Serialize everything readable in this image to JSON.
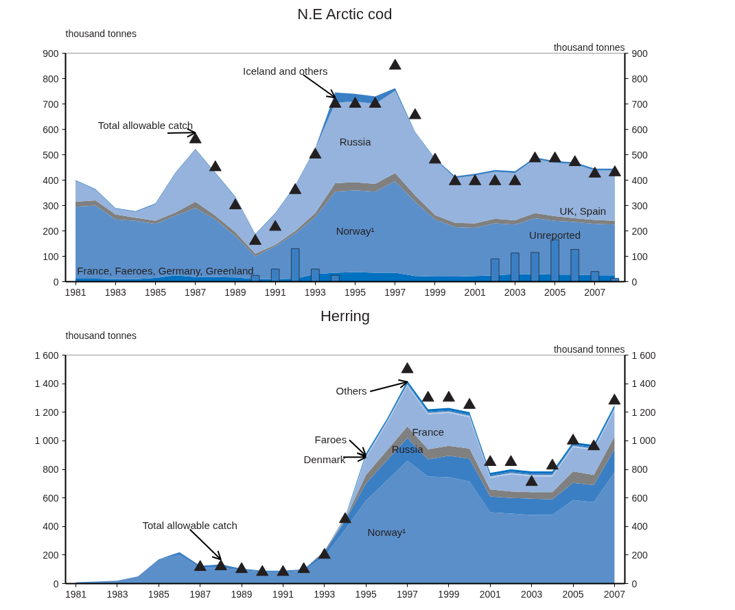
{
  "chart_data": [
    {
      "type": "area",
      "title": "N.E Arctic cod",
      "ylabel": "thousand tonnes",
      "y2label": "thousand tonnes",
      "stacked": true,
      "grid": false,
      "legend": false,
      "x": [
        1981,
        1982,
        1983,
        1984,
        1985,
        1986,
        1987,
        1988,
        1989,
        1990,
        1991,
        1992,
        1993,
        1994,
        1995,
        1996,
        1997,
        1998,
        1999,
        2000,
        2001,
        2002,
        2003,
        2004,
        2005,
        2006,
        2007,
        2008
      ],
      "xlim": [
        1980.5,
        2008.5
      ],
      "xticks": [
        1981,
        1983,
        1985,
        1987,
        1989,
        1991,
        1993,
        1995,
        1997,
        1999,
        2001,
        2003,
        2005,
        2007
      ],
      "ylim": [
        0,
        900
      ],
      "yticks": [
        0,
        100,
        200,
        300,
        400,
        500,
        600,
        700,
        800,
        900
      ],
      "y2lim": [
        0,
        900
      ],
      "y2ticks": [
        0,
        100,
        200,
        300,
        400,
        500,
        600,
        700,
        800,
        900
      ],
      "series": [
        {
          "name": "France, Faeroes, Germany, Greenland",
          "color": "#0070c0",
          "values": [
            12,
            12,
            10,
            10,
            15,
            25,
            18,
            18,
            17,
            10,
            10,
            12,
            30,
            35,
            38,
            35,
            35,
            22,
            20,
            20,
            22,
            25,
            30,
            30,
            28,
            28,
            25,
            25
          ]
        },
        {
          "name": "Norway¹",
          "color": "#5b8fc9",
          "values": [
            283,
            288,
            235,
            230,
            213,
            235,
            272,
            227,
            163,
            90,
            130,
            178,
            225,
            320,
            322,
            320,
            360,
            293,
            225,
            195,
            190,
            205,
            195,
            220,
            212,
            207,
            203,
            200
          ]
        },
        {
          "name": "UK, Spain",
          "color": "#808080",
          "values": [
            20,
            20,
            20,
            12,
            12,
            12,
            25,
            15,
            15,
            10,
            5,
            10,
            15,
            33,
            32,
            30,
            33,
            25,
            17,
            17,
            18,
            18,
            17,
            20,
            18,
            15,
            15,
            15
          ]
        },
        {
          "name": "Russia",
          "color": "#95b3dc",
          "values": [
            82,
            42,
            22,
            23,
            65,
            155,
            205,
            167,
            137,
            75,
            122,
            177,
            252,
            317,
            318,
            315,
            324,
            247,
            220,
            176,
            188,
            185,
            186,
            213,
            210,
            213,
            195,
            198
          ]
        },
        {
          "name": "Iceland and others",
          "color": "#3a7fc4",
          "values": [
            3,
            3,
            3,
            3,
            3,
            3,
            3,
            3,
            3,
            3,
            3,
            3,
            3,
            40,
            30,
            30,
            10,
            3,
            3,
            7,
            7,
            7,
            7,
            7,
            7,
            7,
            7,
            7
          ]
        },
        {
          "name": "Unreported",
          "type": "bar",
          "color": "#3a7fc4",
          "values": [
            null,
            null,
            null,
            null,
            null,
            null,
            null,
            null,
            null,
            25,
            50,
            130,
            50,
            25,
            null,
            null,
            null,
            null,
            null,
            null,
            null,
            90,
            113,
            115,
            165,
            127,
            40,
            13
          ]
        },
        {
          "name": "Total allowable catch",
          "type": "scatter",
          "marker": "triangle",
          "color": "#231f20",
          "values": [
            null,
            null,
            null,
            null,
            null,
            null,
            560,
            450,
            300,
            160,
            215,
            360,
            500,
            700,
            700,
            700,
            850,
            655,
            480,
            395,
            395,
            395,
            395,
            485,
            485,
            470,
            425,
            430
          ]
        }
      ]
    },
    {
      "type": "area",
      "title": "Herring",
      "ylabel": "thousand tonnes",
      "y2label": "thousand tonnes",
      "stacked": true,
      "grid": false,
      "legend": false,
      "x": [
        1981,
        1982,
        1983,
        1984,
        1985,
        1986,
        1987,
        1988,
        1989,
        1990,
        1991,
        1992,
        1993,
        1994,
        1995,
        1996,
        1997,
        1998,
        1999,
        2000,
        2001,
        2002,
        2003,
        2004,
        2005,
        2006,
        2007
      ],
      "xlim": [
        1980.5,
        2007.5
      ],
      "xticks": [
        1981,
        1983,
        1985,
        1987,
        1989,
        1991,
        1993,
        1995,
        1997,
        1999,
        2001,
        2003,
        2005,
        2007
      ],
      "ylim": [
        0,
        1600
      ],
      "yticks": [
        0,
        200,
        400,
        600,
        800,
        {
          "value": 1000,
          "label": "1 000"
        },
        {
          "value": 1200,
          "label": "1 200"
        },
        {
          "value": 1400,
          "label": "1 400"
        },
        {
          "value": 1600,
          "label": "1 600"
        }
      ],
      "y2lim": [
        0,
        1600
      ],
      "y2ticks": [
        0,
        200,
        400,
        600,
        800,
        {
          "value": 1000,
          "label": "1 000"
        },
        {
          "value": 1200,
          "label": "1 200"
        },
        {
          "value": 1400,
          "label": "1 400"
        },
        {
          "value": 1600,
          "label": "1 600"
        }
      ],
      "series": [
        {
          "name": "Norway¹",
          "color": "#5b8fc9",
          "values": [
            10,
            15,
            20,
            50,
            170,
            200,
            110,
            110,
            95,
            80,
            80,
            90,
            190,
            380,
            580,
            720,
            860,
            750,
            745,
            715,
            500,
            490,
            480,
            480,
            585,
            570,
            780
          ]
        },
        {
          "name": "Russia",
          "color": "#3a7fc4",
          "values": [
            0,
            0,
            0,
            0,
            0,
            20,
            15,
            25,
            10,
            10,
            10,
            10,
            30,
            60,
            120,
            140,
            160,
            120,
            150,
            160,
            110,
            110,
            115,
            110,
            120,
            120,
            160
          ]
        },
        {
          "color": "#808080",
          "values": [
            0,
            0,
            0,
            0,
            0,
            0,
            0,
            0,
            0,
            0,
            0,
            0,
            10,
            10,
            60,
            70,
            80,
            70,
            70,
            70,
            50,
            45,
            45,
            50,
            80,
            70,
            90
          ]
        },
        {
          "name": "France",
          "color": "#95b3dc",
          "values": [
            0,
            0,
            0,
            0,
            0,
            0,
            0,
            0,
            0,
            0,
            0,
            0,
            0,
            10,
            120,
            190,
            285,
            245,
            230,
            220,
            80,
            120,
            110,
            110,
            170,
            175,
            185
          ]
        },
        {
          "name": "Denmark",
          "color": "#b8cce4",
          "values": [
            0,
            0,
            0,
            0,
            0,
            0,
            0,
            0,
            0,
            0,
            0,
            0,
            0,
            3,
            10,
            10,
            10,
            10,
            10,
            10,
            10,
            10,
            10,
            10,
            10,
            10,
            10
          ]
        },
        {
          "name": "Faroes",
          "color": "#3a7fc4",
          "values": [
            0,
            0,
            0,
            0,
            0,
            0,
            0,
            0,
            0,
            0,
            0,
            0,
            0,
            3,
            10,
            10,
            10,
            10,
            10,
            10,
            10,
            10,
            10,
            10,
            10,
            10,
            10
          ]
        },
        {
          "name": "Others",
          "color": "#0070c0",
          "values": [
            0,
            0,
            0,
            0,
            0,
            0,
            0,
            0,
            0,
            0,
            0,
            0,
            0,
            4,
            10,
            10,
            15,
            15,
            15,
            15,
            15,
            15,
            15,
            15,
            15,
            15,
            15
          ]
        },
        {
          "name": "Total allowable catch",
          "type": "scatter",
          "marker": "triangle",
          "color": "#231f20",
          "values": [
            null,
            null,
            null,
            null,
            null,
            null,
            115,
            120,
            100,
            80,
            80,
            100,
            200,
            450,
            null,
            null,
            1500,
            1300,
            1300,
            1250,
            850,
            850,
            710,
            825,
            1000,
            960,
            1280
          ]
        }
      ]
    }
  ]
}
